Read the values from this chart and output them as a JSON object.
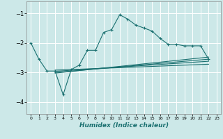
{
  "xlabel": "Humidex (Indice chaleur)",
  "background_color": "#cce8e8",
  "grid_color": "#ffffff",
  "line_color": "#1a7070",
  "xlim": [
    -0.5,
    23.5
  ],
  "ylim": [
    -4.4,
    -0.6
  ],
  "yticks": [
    -4,
    -3,
    -2,
    -1
  ],
  "xticks": [
    0,
    1,
    2,
    3,
    4,
    5,
    6,
    7,
    8,
    9,
    10,
    11,
    12,
    13,
    14,
    15,
    16,
    17,
    18,
    19,
    20,
    21,
    22,
    23
  ],
  "curve1_x": [
    0,
    1,
    2,
    3,
    4,
    5,
    6,
    7,
    8,
    9,
    10,
    11,
    12,
    13,
    14,
    15,
    16,
    17,
    18,
    19,
    20,
    21,
    22
  ],
  "curve1_y": [
    -2.0,
    -2.55,
    -2.95,
    -2.95,
    -3.75,
    -2.9,
    -2.75,
    -2.25,
    -2.25,
    -1.65,
    -1.55,
    -1.05,
    -1.2,
    -1.4,
    -1.5,
    -1.6,
    -1.85,
    -2.05,
    -2.05,
    -2.1,
    -2.1,
    -2.1,
    -2.55
  ],
  "line1_x": [
    3,
    22
  ],
  "line1_y": [
    -2.92,
    -2.72
  ],
  "line2_x": [
    3,
    22
  ],
  "line2_y": [
    -2.96,
    -2.62
  ],
  "line3_x": [
    3,
    22
  ],
  "line3_y": [
    -3.0,
    -2.55
  ],
  "line4_x": [
    3,
    22
  ],
  "line4_y": [
    -3.02,
    -2.48
  ],
  "marker": "+"
}
